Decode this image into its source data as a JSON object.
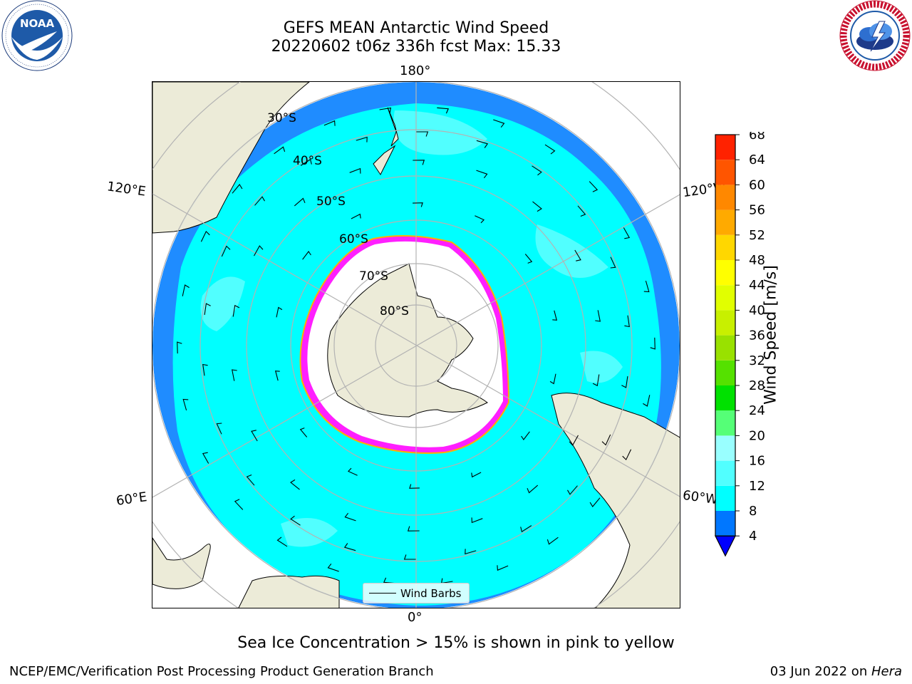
{
  "title": {
    "line1": "GEFS MEAN Antarctic Wind Speed",
    "line2": "20220602 t06z 336h fcst   Max: 15.33"
  },
  "logos": {
    "left": "noaa-logo",
    "right": "nws-logo",
    "left_text": "NOAA",
    "left_ring_text": "NATIONAL OCEANIC AND ATMOSPHERIC ADMINISTRATION · U.S. DEPARTMENT OF COMMERCE",
    "right_ring_text": "NATIONAL WEATHER SERVICE"
  },
  "map": {
    "projection": "south-polar-stereographic",
    "longitude_labels": {
      "top": "180°",
      "bottom": "0°",
      "upper_left": "120°E",
      "upper_right": "120°W",
      "lower_left": "60°E",
      "lower_right": "60°W"
    },
    "latitude_labels": [
      "30°S",
      "40°S",
      "50°S",
      "60°S",
      "70°S",
      "80°S"
    ],
    "colors": {
      "land": "#ecebd8",
      "ocean_edge": "#1f8cff",
      "ocean_main": "#00ffff",
      "ocean_patch": "#51ffff",
      "ice": "#ffffff",
      "sea_ice_edge": "#ff1fff",
      "grid": "#b3b3b3"
    }
  },
  "legend": {
    "label": "Wind Barbs"
  },
  "colorbar": {
    "label": "Wind Speed [m/s]",
    "ticks": [
      "4",
      "8",
      "12",
      "16",
      "20",
      "24",
      "28",
      "32",
      "36",
      "40",
      "44",
      "48",
      "52",
      "56",
      "60",
      "64",
      "68"
    ],
    "colors": [
      "#0077ff",
      "#00ffff",
      "#51ffff",
      "#99ffff",
      "#55ff77",
      "#00e100",
      "#55e100",
      "#99e100",
      "#c8f000",
      "#e1ff00",
      "#ffff00",
      "#ffd700",
      "#ffaa00",
      "#ff8800",
      "#ff5500",
      "#ff2200"
    ],
    "extend_color": "#0000ff"
  },
  "caption": "Sea Ice Concentration > 15% is shown in pink to yellow",
  "footer": {
    "left": "NCEP/EMC/Verification Post Processing Product Generation Branch",
    "right_date": "03 Jun 2022 on ",
    "right_host": "Hera"
  }
}
